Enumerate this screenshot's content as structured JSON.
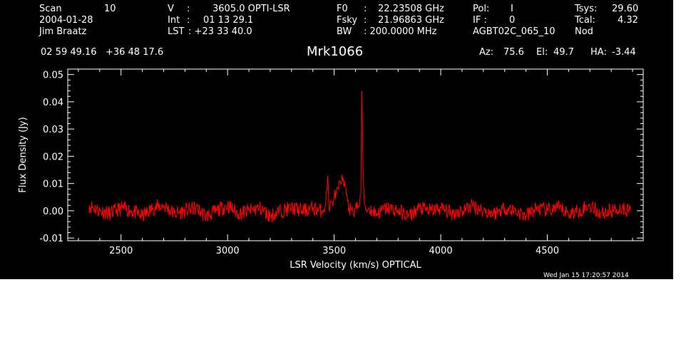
{
  "header": {
    "scan_label": "Scan",
    "scan_value": "10",
    "date": "2004-01-28",
    "observer": "Jim Braatz",
    "v_label": "V",
    "v_colon": ":",
    "v_value": "3605.0 OPTI-LSR",
    "int_label": "Int",
    "int_colon": ":",
    "int_value": "01 13 29.1",
    "lst_label": "LST",
    "lst_value": ": +23 33 40.0",
    "f0_label": "F0",
    "f0_colon": ":",
    "f0_value": "22.23508 GHz",
    "fsky_label": "Fsky",
    "fsky_colon": ":",
    "fsky_value": "21.96863 GHz",
    "bw_label": "BW",
    "bw_value": ": 200.0000 MHz",
    "pol_label": "Pol:",
    "pol_value": "I",
    "if_label": "IF :",
    "if_value": "0",
    "project": "AGBT02C_065_10",
    "tsys_label": "Tsys:",
    "tsys_value": "29.60",
    "tcal_label": "Tcal:",
    "tcal_value": "4.32",
    "mode": "Nod",
    "coords": "02 59 49.16   +36 48 17.6",
    "source": "Mrk1066",
    "az_label": "Az:",
    "az_value": "75.6",
    "el_label": "El:",
    "el_value": "49.7",
    "ha_label": "HA:",
    "ha_value": "-3.44",
    "timestamp": "Wed Jan 15 17:20:57 2014"
  },
  "chart_data": {
    "type": "line",
    "xlabel": "LSR Velocity (km/s) OPTICAL",
    "ylabel": "Flux Density (Jy)",
    "xlim": [
      2250,
      4950
    ],
    "ylim": [
      -0.011,
      0.052
    ],
    "x_ticks": [
      2500,
      3000,
      3500,
      4000,
      4500
    ],
    "x_tick_labels": [
      "2500",
      "3000",
      "3500",
      "4000",
      "4500"
    ],
    "y_ticks": [
      -0.01,
      0.0,
      0.01,
      0.02,
      0.03,
      0.04,
      0.05
    ],
    "y_tick_labels": [
      "-0.01",
      "0.00",
      "0.01",
      "0.02",
      "0.03",
      "0.04",
      "0.05"
    ],
    "series": [
      {
        "color": "#ff0000",
        "x": [
          2350,
          2400,
          2450,
          2500,
          2550,
          2600,
          2650,
          2700,
          2750,
          2800,
          2850,
          2900,
          2950,
          3000,
          3050,
          3100,
          3150,
          3200,
          3250,
          3300,
          3350,
          3400,
          3440,
          3460,
          3470,
          3475,
          3480,
          3490,
          3500,
          3510,
          3520,
          3530,
          3540,
          3545,
          3550,
          3555,
          3560,
          3565,
          3570,
          3580,
          3590,
          3600,
          3610,
          3620,
          3625,
          3630,
          3635,
          3640,
          3645,
          3650,
          3660,
          3680,
          3700,
          3750,
          3800,
          3850,
          3900,
          3950,
          4000,
          4050,
          4100,
          4150,
          4200,
          4250,
          4300,
          4350,
          4400,
          4450,
          4500,
          4550,
          4600,
          4650,
          4700,
          4750,
          4800,
          4850,
          4890
        ],
        "y": [
          0.002,
          0.0,
          -0.001,
          0.001,
          0.0,
          -0.002,
          0.001,
          0.002,
          -0.001,
          0.0,
          0.001,
          -0.002,
          0.0,
          0.002,
          -0.001,
          0.0,
          0.001,
          -0.002,
          0.0,
          0.001,
          0.0,
          0.001,
          0.0,
          0.002,
          0.013,
          0.003,
          0.001,
          0.003,
          0.005,
          0.006,
          0.008,
          0.01,
          0.011,
          0.009,
          0.011,
          0.008,
          0.006,
          0.004,
          0.001,
          0.0,
          -0.001,
          0.002,
          0.001,
          0.003,
          0.006,
          0.044,
          0.017,
          0.005,
          0.002,
          0.0,
          0.001,
          0.0,
          -0.001,
          0.001,
          0.0,
          -0.002,
          0.001,
          0.0,
          0.001,
          -0.001,
          0.0,
          0.002,
          0.0,
          -0.001,
          0.001,
          0.0,
          -0.002,
          0.001,
          0.0,
          0.001,
          -0.001,
          0.0,
          0.002,
          -0.001,
          0.0,
          0.001,
          0.0
        ]
      }
    ]
  }
}
